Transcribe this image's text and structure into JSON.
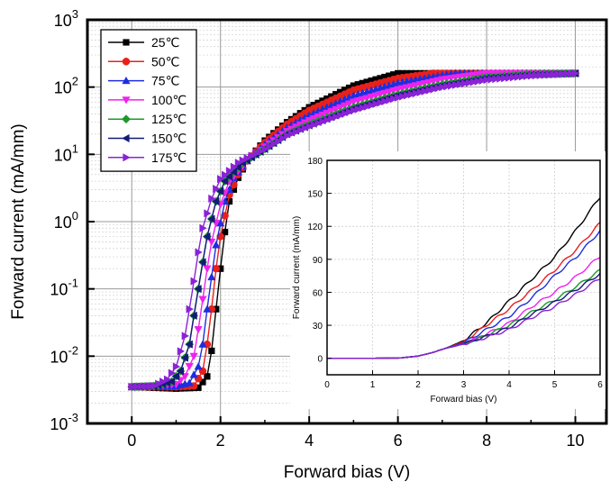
{
  "chart_data": [
    {
      "type": "line",
      "id": "main",
      "xlabel": "Forward bias (V)",
      "ylabel": "Forward current (mA/mm)",
      "xlim": [
        -1,
        10.7
      ],
      "ylim": [
        0.001,
        1000
      ],
      "y_scale": "log",
      "x_ticks": [
        "0",
        "2",
        "4",
        "6",
        "8",
        "10"
      ],
      "y_ticks": [
        {
          "base": "10",
          "exp": "-3"
        },
        {
          "base": "10",
          "exp": "-2"
        },
        {
          "base": "10",
          "exp": "-1"
        },
        {
          "base": "10",
          "exp": "0"
        },
        {
          "base": "10",
          "exp": "1"
        },
        {
          "base": "10",
          "exp": "2"
        },
        {
          "base": "10",
          "exp": "3"
        }
      ],
      "grid": true,
      "legend_position": "top-left",
      "series": [
        {
          "name": "25℃",
          "color": "#000000",
          "marker": "square",
          "x": [
            0,
            0.5,
            1.0,
            1.5,
            1.7,
            1.8,
            1.9,
            2.0,
            2.1,
            2.2,
            2.4,
            2.6,
            3.0,
            3.5,
            4.0,
            5.0,
            6.0,
            6.5,
            7.0,
            8.0,
            9.0,
            10.0
          ],
          "y": [
            0.0035,
            0.0034,
            0.0033,
            0.0034,
            0.005,
            0.012,
            0.05,
            0.2,
            0.7,
            2.0,
            4.5,
            8.0,
            16,
            30,
            50,
            105,
            160,
            160,
            160,
            160,
            160,
            160
          ]
        },
        {
          "name": "50℃",
          "color": "#e8201c",
          "marker": "circle",
          "x": [
            0,
            0.5,
            1.0,
            1.4,
            1.6,
            1.7,
            1.8,
            1.9,
            2.0,
            2.2,
            2.4,
            2.6,
            3.0,
            3.5,
            4.0,
            5.0,
            6.0,
            6.8,
            7.0,
            8.0,
            9.0,
            10.0
          ],
          "y": [
            0.0035,
            0.0035,
            0.0035,
            0.0036,
            0.006,
            0.015,
            0.05,
            0.2,
            0.6,
            2.5,
            5.0,
            8.0,
            15,
            28,
            45,
            90,
            135,
            160,
            160,
            160,
            160,
            160
          ]
        },
        {
          "name": "75℃",
          "color": "#1d2ee0",
          "marker": "triangle-up",
          "x": [
            0,
            0.5,
            1.0,
            1.3,
            1.5,
            1.6,
            1.7,
            1.8,
            1.9,
            2.1,
            2.3,
            2.6,
            3.0,
            3.5,
            4.0,
            5.0,
            6.0,
            7.0,
            7.3,
            8.0,
            9.0,
            10.0
          ],
          "y": [
            0.0035,
            0.0035,
            0.0036,
            0.004,
            0.007,
            0.015,
            0.05,
            0.15,
            0.45,
            2.0,
            4.5,
            8.0,
            14,
            25,
            38,
            75,
            115,
            150,
            160,
            160,
            160,
            160
          ]
        },
        {
          "name": "100℃",
          "color": "#ee22ee",
          "marker": "triangle-down",
          "x": [
            0,
            0.5,
            1.0,
            1.2,
            1.4,
            1.5,
            1.6,
            1.7,
            1.8,
            2.0,
            2.2,
            2.6,
            3.0,
            3.5,
            4.0,
            5.0,
            6.0,
            7.0,
            8.0,
            9.0,
            10.0
          ],
          "y": [
            0.0035,
            0.0036,
            0.0038,
            0.005,
            0.01,
            0.025,
            0.07,
            0.2,
            0.5,
            1.8,
            4.0,
            8.0,
            13,
            22,
            32,
            60,
            92,
            130,
            160,
            160,
            160
          ]
        },
        {
          "name": "125℃",
          "color": "#1e9a2a",
          "marker": "diamond",
          "x": [
            0,
            0.5,
            0.9,
            1.1,
            1.3,
            1.4,
            1.5,
            1.6,
            1.7,
            1.9,
            2.1,
            2.5,
            3.0,
            3.5,
            4.0,
            5.0,
            6.0,
            7.0,
            8.0,
            9.0,
            10.0
          ],
          "y": [
            0.0035,
            0.0036,
            0.0042,
            0.006,
            0.015,
            0.04,
            0.1,
            0.25,
            0.6,
            2.0,
            4.0,
            7.5,
            12,
            20,
            28,
            50,
            78,
            110,
            140,
            155,
            160
          ]
        },
        {
          "name": "150℃",
          "color": "#141a78",
          "marker": "triangle-left",
          "x": [
            0,
            0.5,
            0.9,
            1.1,
            1.3,
            1.4,
            1.5,
            1.6,
            1.7,
            1.9,
            2.1,
            2.5,
            3.0,
            3.5,
            4.0,
            5.0,
            6.0,
            7.0,
            8.0,
            9.0,
            10.0
          ],
          "y": [
            0.0035,
            0.0036,
            0.0042,
            0.006,
            0.015,
            0.04,
            0.1,
            0.25,
            0.6,
            2.0,
            4.0,
            7.5,
            12,
            20,
            27,
            48,
            75,
            105,
            135,
            152,
            160
          ]
        },
        {
          "name": "175℃",
          "color": "#8a22d6",
          "marker": "triangle-right",
          "x": [
            0,
            0.5,
            0.8,
            1.0,
            1.2,
            1.3,
            1.4,
            1.5,
            1.6,
            1.8,
            2.0,
            2.4,
            3.0,
            3.5,
            4.0,
            5.0,
            6.0,
            7.0,
            8.0,
            9.0,
            10.0
          ],
          "y": [
            0.0035,
            0.0036,
            0.0045,
            0.007,
            0.02,
            0.05,
            0.13,
            0.35,
            0.8,
            2.2,
            4.3,
            7.5,
            12,
            19,
            26,
            45,
            70,
            100,
            128,
            148,
            160
          ]
        }
      ]
    },
    {
      "type": "line",
      "id": "inset",
      "xlabel": "Forward bias (V)",
      "ylabel": "Forward current (mA/mm)",
      "xlim": [
        0,
        6
      ],
      "ylim": [
        -15,
        180
      ],
      "x_ticks": [
        "0",
        "1",
        "2",
        "3",
        "4",
        "5",
        "6"
      ],
      "y_ticks": [
        "0",
        "30",
        "60",
        "90",
        "120",
        "150",
        "180"
      ],
      "grid": true,
      "series": [
        {
          "name": "25℃",
          "color": "#000000",
          "x": [
            0,
            1,
            1.6,
            2.0,
            2.3,
            2.6,
            3.0,
            3.5,
            4.0,
            4.5,
            5.0,
            5.5,
            6.0
          ],
          "y": [
            0,
            0,
            0.3,
            2,
            5,
            9,
            16,
            32,
            52,
            72,
            92,
            118,
            147
          ]
        },
        {
          "name": "50℃",
          "color": "#e8201c",
          "x": [
            0,
            1,
            1.6,
            2.0,
            2.3,
            2.6,
            3.0,
            3.5,
            4.0,
            4.5,
            5.0,
            5.5,
            6.0
          ],
          "y": [
            0,
            0,
            0.3,
            2,
            5,
            9,
            15,
            30,
            45,
            62,
            80,
            100,
            123
          ]
        },
        {
          "name": "75℃",
          "color": "#1d2ee0",
          "x": [
            0,
            1,
            1.6,
            2.0,
            2.3,
            2.6,
            3.0,
            3.5,
            4.0,
            4.5,
            5.0,
            5.5,
            6.0
          ],
          "y": [
            0,
            0,
            0.3,
            2,
            5,
            9,
            14,
            26,
            38,
            55,
            75,
            93,
            116
          ]
        },
        {
          "name": "100℃",
          "color": "#ee22ee",
          "x": [
            0,
            1,
            1.6,
            2.0,
            2.3,
            2.6,
            3.0,
            3.5,
            4.0,
            4.5,
            5.0,
            5.5,
            6.0
          ],
          "y": [
            0,
            0,
            0.3,
            2,
            5,
            9,
            13,
            22,
            32,
            47,
            60,
            75,
            93
          ]
        },
        {
          "name": "125℃",
          "color": "#1e9a2a",
          "x": [
            0,
            1,
            1.6,
            2.0,
            2.3,
            2.6,
            3.0,
            3.5,
            4.0,
            4.5,
            5.0,
            5.5,
            6.0
          ],
          "y": [
            0,
            0,
            0.3,
            2,
            5,
            9,
            13,
            21,
            30,
            42,
            53,
            66,
            80
          ]
        },
        {
          "name": "150℃",
          "color": "#141a78",
          "x": [
            0,
            1,
            1.6,
            2.0,
            2.3,
            2.6,
            3.0,
            3.5,
            4.0,
            4.5,
            5.0,
            5.5,
            6.0
          ],
          "y": [
            0,
            0,
            0.3,
            2,
            5,
            9,
            13,
            20,
            28,
            40,
            51,
            63,
            77
          ]
        },
        {
          "name": "175℃",
          "color": "#8a22d6",
          "x": [
            0,
            1,
            1.6,
            2.0,
            2.3,
            2.6,
            3.0,
            3.5,
            4.0,
            4.5,
            5.0,
            5.5,
            6.0
          ],
          "y": [
            0,
            0,
            0.3,
            2,
            5,
            9,
            13,
            19,
            26,
            37,
            47,
            59,
            73
          ]
        }
      ]
    }
  ]
}
